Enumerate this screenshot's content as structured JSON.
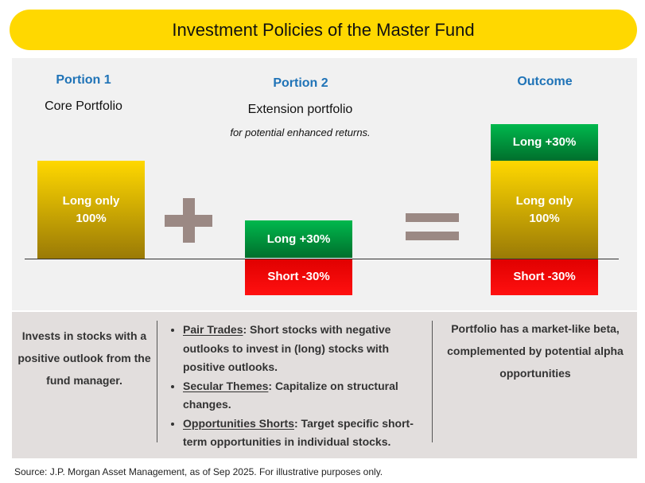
{
  "title": "Investment Policies of the Master Fund",
  "portion1": {
    "heading": "Portion 1",
    "subtitle": "Core Portfolio",
    "box": "Long only\n100%"
  },
  "portion2": {
    "heading": "Portion 2",
    "subtitle": "Extension portfolio",
    "note": "for potential enhanced returns.",
    "long": "Long +30%",
    "short": "Short -30%"
  },
  "outcome": {
    "heading": "Outcome",
    "long": "Long +30%",
    "core": "Long only\n100%",
    "short": "Short -30%"
  },
  "bottom": {
    "left": "Invests in stocks with a positive outlook from the fund manager.",
    "bullets": [
      {
        "term": "Pair Trades",
        "text": ": Short stocks with negative outlooks to invest in (long) stocks with positive outlooks."
      },
      {
        "term": "Secular Themes",
        "text": ": Capitalize on structural changes."
      },
      {
        "term": "Opportunities Shorts",
        "text": ": Target specific short-term opportunities in individual stocks."
      }
    ],
    "right": "Portfolio has a market-like beta, complemented by potential alpha opportunities"
  },
  "source": "Source: J.P. Morgan Asset Management, as of Sep 2025. For illustrative purposes only.",
  "colors": {
    "yellow": "#ffd800",
    "blue": "#1f73b7",
    "green": "#00b84d",
    "red": "#e00000"
  }
}
